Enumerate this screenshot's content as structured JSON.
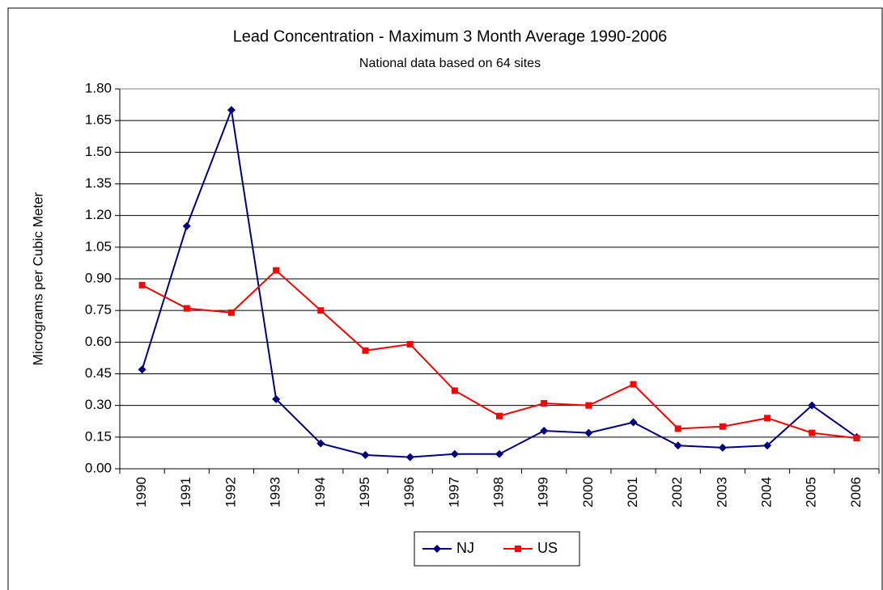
{
  "chart_data": {
    "type": "line",
    "title": "Lead Concentration - Maximum 3 Month Average 1990-2006",
    "subtitle": "National data based on 64 sites",
    "y_label": "Micrograms per Cubic Meter",
    "categories": [
      "1990",
      "1991",
      "1992",
      "1993",
      "1994",
      "1995",
      "1996",
      "1997",
      "1998",
      "1999",
      "2000",
      "2001",
      "2002",
      "2003",
      "2004",
      "2005",
      "2006"
    ],
    "series": [
      {
        "name": "NJ",
        "color": "#000080",
        "marker": "diamond",
        "values": [
          0.47,
          1.15,
          1.7,
          0.33,
          0.12,
          0.065,
          0.055,
          0.07,
          0.07,
          0.18,
          0.17,
          0.22,
          0.11,
          0.1,
          0.11,
          0.3,
          0.15
        ]
      },
      {
        "name": "US",
        "color": "#ff0000",
        "marker": "square",
        "values": [
          0.87,
          0.76,
          0.74,
          0.94,
          0.75,
          0.56,
          0.59,
          0.37,
          0.25,
          0.31,
          0.3,
          0.4,
          0.19,
          0.2,
          0.24,
          0.17,
          0.145
        ]
      }
    ],
    "ylim": [
      0,
      1.8
    ],
    "yticks": [
      {
        "value": 0,
        "label": "0.00"
      },
      {
        "value": 0.15,
        "label": "0.15"
      },
      {
        "value": 0.3,
        "label": "0.30"
      },
      {
        "value": 0.45,
        "label": "0.45"
      },
      {
        "value": 0.6,
        "label": "0.60"
      },
      {
        "value": 0.75,
        "label": "0.75"
      },
      {
        "value": 0.9,
        "label": "0.90"
      },
      {
        "value": 1.05,
        "label": "1.05"
      },
      {
        "value": 1.2,
        "label": "1.20"
      },
      {
        "value": 1.35,
        "label": "1.35"
      },
      {
        "value": 1.5,
        "label": "1.50"
      },
      {
        "value": 1.65,
        "label": "1.65"
      },
      {
        "value": 1.8,
        "label": "1.80"
      }
    ],
    "grid": true,
    "legend": "bottom"
  }
}
